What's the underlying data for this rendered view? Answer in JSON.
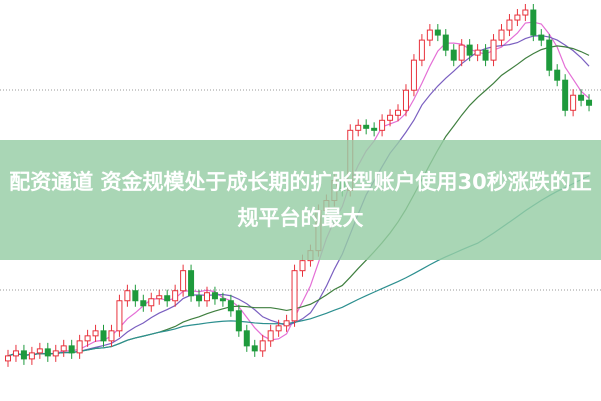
{
  "banner": {
    "title": "配资通道 资金规模处于成长期的扩张型账户使用30秒涨跌的正规平台的最大"
  },
  "colors": {
    "up": "#e8323c",
    "down": "#1e9a3c",
    "grid": "#9a9a9a",
    "banner": "#96cda5",
    "ma": [
      "#e46fd6",
      "#7a5fc0",
      "#3f7f3f",
      "#2c8f8f"
    ]
  },
  "chart_data": {
    "type": "candlestick",
    "ylim": [
      0,
      400
    ],
    "grid": "horizontal-dotted",
    "moving_averages": [
      5,
      10,
      20,
      60
    ],
    "open": [
      40,
      45,
      50,
      42,
      48,
      52,
      45,
      50,
      55,
      48,
      60,
      65,
      70,
      60,
      70,
      100,
      110,
      100,
      95,
      102,
      105,
      100,
      110,
      130,
      105,
      100,
      108,
      102,
      100,
      90,
      70,
      55,
      50,
      60,
      70,
      75,
      80,
      130,
      140,
      150,
      190,
      200,
      220,
      210,
      270,
      275,
      272,
      270,
      280,
      285,
      290,
      310,
      340,
      360,
      370,
      365,
      350,
      340,
      355,
      345,
      350,
      340,
      360,
      370,
      380,
      385,
      390,
      365,
      360,
      330,
      320,
      290,
      305,
      300
    ],
    "close": [
      45,
      50,
      42,
      48,
      52,
      45,
      50,
      55,
      48,
      60,
      65,
      70,
      60,
      70,
      100,
      110,
      100,
      95,
      102,
      105,
      100,
      110,
      130,
      105,
      100,
      108,
      102,
      100,
      90,
      70,
      55,
      50,
      60,
      70,
      75,
      80,
      130,
      140,
      150,
      190,
      200,
      220,
      210,
      270,
      275,
      272,
      270,
      280,
      285,
      290,
      310,
      340,
      360,
      370,
      365,
      350,
      340,
      355,
      345,
      350,
      340,
      360,
      370,
      380,
      385,
      390,
      365,
      360,
      330,
      320,
      290,
      305,
      300,
      295
    ]
  }
}
